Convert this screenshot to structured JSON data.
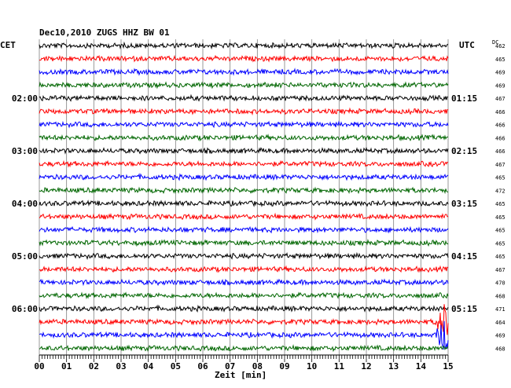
{
  "chart_data": {
    "type": "line",
    "title": "Dec10,2010   ZUGS HHZ BW 01",
    "left_axis_title": "CET",
    "right_axis_title": "UTC",
    "dc_header": "DC",
    "xlabel": "Zeit [min]",
    "xlim": [
      0,
      15
    ],
    "x_ticks": [
      "00",
      "01",
      "02",
      "03",
      "04",
      "05",
      "06",
      "07",
      "08",
      "09",
      "10",
      "11",
      "12",
      "13",
      "14",
      "15"
    ],
    "row_colors": [
      "#000000",
      "#ff0000",
      "#0000ff",
      "#006600"
    ],
    "rows": 24,
    "left_hour_labels": [
      {
        "row": 4,
        "label": "02:00"
      },
      {
        "row": 8,
        "label": "03:00"
      },
      {
        "row": 12,
        "label": "04:00"
      },
      {
        "row": 16,
        "label": "05:00"
      },
      {
        "row": 20,
        "label": "06:00"
      }
    ],
    "right_hour_labels": [
      {
        "row": 4,
        "label": "01:15"
      },
      {
        "row": 8,
        "label": "02:15"
      },
      {
        "row": 12,
        "label": "03:15"
      },
      {
        "row": 16,
        "label": "04:15"
      },
      {
        "row": 20,
        "label": "05:15"
      }
    ],
    "dc_values": [
      "462",
      "465",
      "469",
      "469",
      "467",
      "466",
      "466",
      "466",
      "466",
      "467",
      "465",
      "472",
      "465",
      "465",
      "465",
      "465",
      "465",
      "467",
      "470",
      "468",
      "471",
      "464",
      "469",
      "468"
    ],
    "events": [
      {
        "row": 21,
        "minute": 14.85,
        "amplitude": "large"
      },
      {
        "row": 22,
        "minute": 14.85,
        "amplitude": "large"
      }
    ],
    "grid": true
  }
}
